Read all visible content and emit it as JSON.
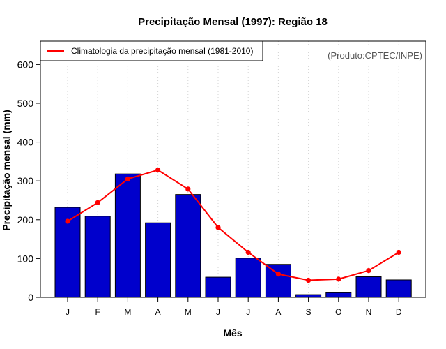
{
  "chart_data": {
    "type": "bar",
    "title": "Precipitação Mensal (1997): Região 18",
    "xlabel": "Mês",
    "ylabel": "Precipitação mensal (mm)",
    "ylim": [
      0,
      660
    ],
    "yticks": [
      0,
      100,
      200,
      300,
      400,
      500,
      600
    ],
    "grid": true,
    "categories": [
      "J",
      "F",
      "M",
      "A",
      "M",
      "J",
      "J",
      "A",
      "S",
      "O",
      "N",
      "D"
    ],
    "series": [
      {
        "name": "Precipitação mensal (1997)",
        "type": "bar",
        "color": "#0000cc",
        "values": [
          232,
          209,
          318,
          192,
          265,
          52,
          101,
          85,
          7,
          12,
          53,
          45
        ]
      },
      {
        "name": "Climatologia da precipitação mensal (1981-2010)",
        "type": "line",
        "color": "#ff0000",
        "values": [
          196,
          244,
          305,
          328,
          279,
          180,
          116,
          60,
          44,
          47,
          69,
          116
        ]
      }
    ],
    "legend": {
      "position": "top-left",
      "entries": [
        "Climatologia da precipitação mensal (1981-2010)"
      ]
    },
    "annotation": "(Produto:CPTEC/INPE)"
  }
}
